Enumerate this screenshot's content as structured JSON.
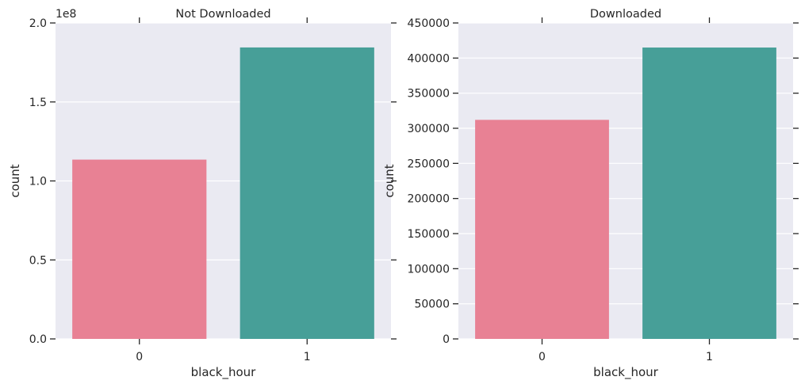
{
  "chart_data": [
    {
      "type": "bar",
      "title": "Not Downloaded",
      "xlabel": "black_hour",
      "ylabel": "count",
      "categories": [
        "0",
        "1"
      ],
      "values": [
        113500000,
        184500000
      ],
      "colors": [
        "#e88194",
        "#479f98"
      ],
      "ylim": [
        0,
        200000000
      ],
      "yticks": [
        0,
        50000000,
        100000000,
        150000000,
        200000000
      ],
      "ytick_labels": [
        "0.0",
        "0.5",
        "1.0",
        "1.5",
        "2.0"
      ],
      "offset_label": "1e8",
      "grid": true
    },
    {
      "type": "bar",
      "title": "Downloaded",
      "xlabel": "black_hour",
      "ylabel": "count",
      "categories": [
        "0",
        "1"
      ],
      "values": [
        312000,
        415000
      ],
      "colors": [
        "#e88194",
        "#479f98"
      ],
      "ylim": [
        0,
        450000
      ],
      "yticks": [
        0,
        50000,
        100000,
        150000,
        200000,
        250000,
        300000,
        350000,
        400000,
        450000
      ],
      "ytick_labels": [
        "0",
        "50000",
        "100000",
        "150000",
        "200000",
        "250000",
        "300000",
        "350000",
        "400000",
        "450000"
      ],
      "offset_label": "",
      "grid": true
    }
  ]
}
